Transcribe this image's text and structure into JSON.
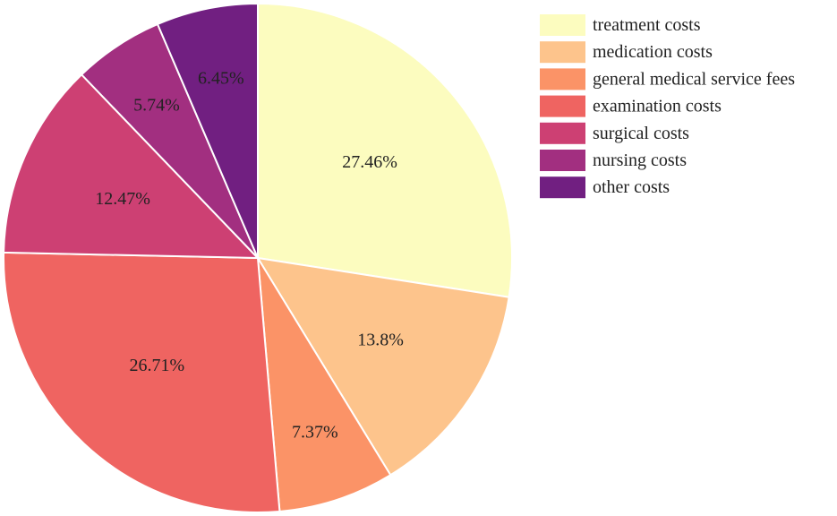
{
  "chart_data": {
    "type": "pie",
    "title": "",
    "start": "top, clockwise",
    "legend_position": "top-right",
    "slices": [
      {
        "label": "treatment costs",
        "value": 27.46,
        "display": "27.46%",
        "color": "#fcfcbf"
      },
      {
        "label": "medication costs",
        "value": 13.8,
        "display": "13.8%",
        "color": "#fdc48c"
      },
      {
        "label": "general medical service fees",
        "value": 7.37,
        "display": "7.37%",
        "color": "#fb9367"
      },
      {
        "label": "examination costs",
        "value": 26.71,
        "display": "26.71%",
        "color": "#ef6461"
      },
      {
        "label": "surgical costs",
        "value": 12.47,
        "display": "12.47%",
        "color": "#cd4073"
      },
      {
        "label": "nursing costs",
        "value": 5.74,
        "display": "5.74%",
        "color": "#a22f80"
      },
      {
        "label": "other costs",
        "value": 6.45,
        "display": "6.45%",
        "color": "#711f81"
      }
    ]
  }
}
